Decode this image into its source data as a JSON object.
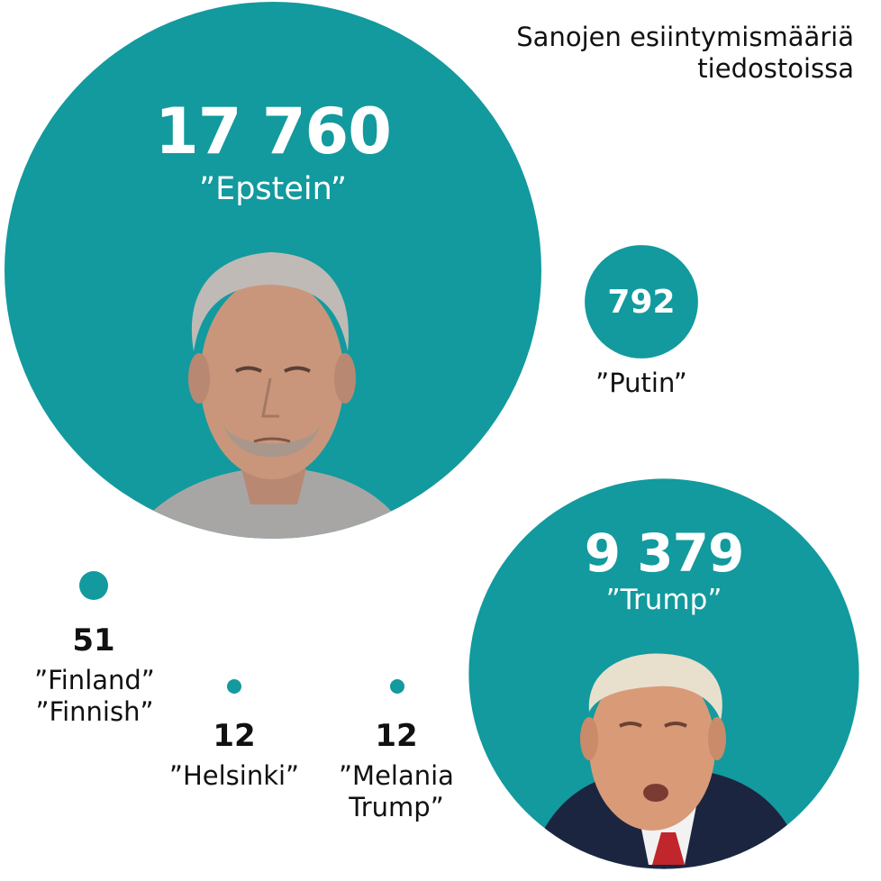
{
  "title_line1": "Sanojen esiintymismääriä",
  "title_line2": "tiedostoissa",
  "colors": {
    "bubble": "#129a9e",
    "text": "#111111",
    "label_on_bubble": "#ffffff",
    "skin": "#c9967c",
    "hair_grey": "#bfbab6",
    "hair_blond": "#e9dfcd",
    "suit": "#1c2540",
    "tie": "#c0262c",
    "shirt_grey": "#a7a6a4"
  },
  "chart_data": {
    "type": "bubble",
    "title": "Sanojen esiintymismääriä tiedostoissa",
    "series": [
      {
        "name": "Epstein",
        "label": "”Epstein”",
        "value": 17760,
        "display": "17 760",
        "photo": "portrait-epstein"
      },
      {
        "name": "Trump",
        "label": "”Trump”",
        "value": 9379,
        "display": "9 379",
        "photo": "portrait-trump"
      },
      {
        "name": "Putin",
        "label": "”Putin”",
        "value": 792,
        "display": "792"
      },
      {
        "name": "Finland / Finnish",
        "label_lines": [
          "”Finland”",
          "”Finnish”"
        ],
        "value": 51,
        "display": "51"
      },
      {
        "name": "Helsinki",
        "label": "”Helsinki”",
        "value": 12,
        "display": "12"
      },
      {
        "name": "Melania Trump",
        "label_lines": [
          "”Melania",
          "Trump”"
        ],
        "value": 12,
        "display": "12"
      }
    ]
  }
}
